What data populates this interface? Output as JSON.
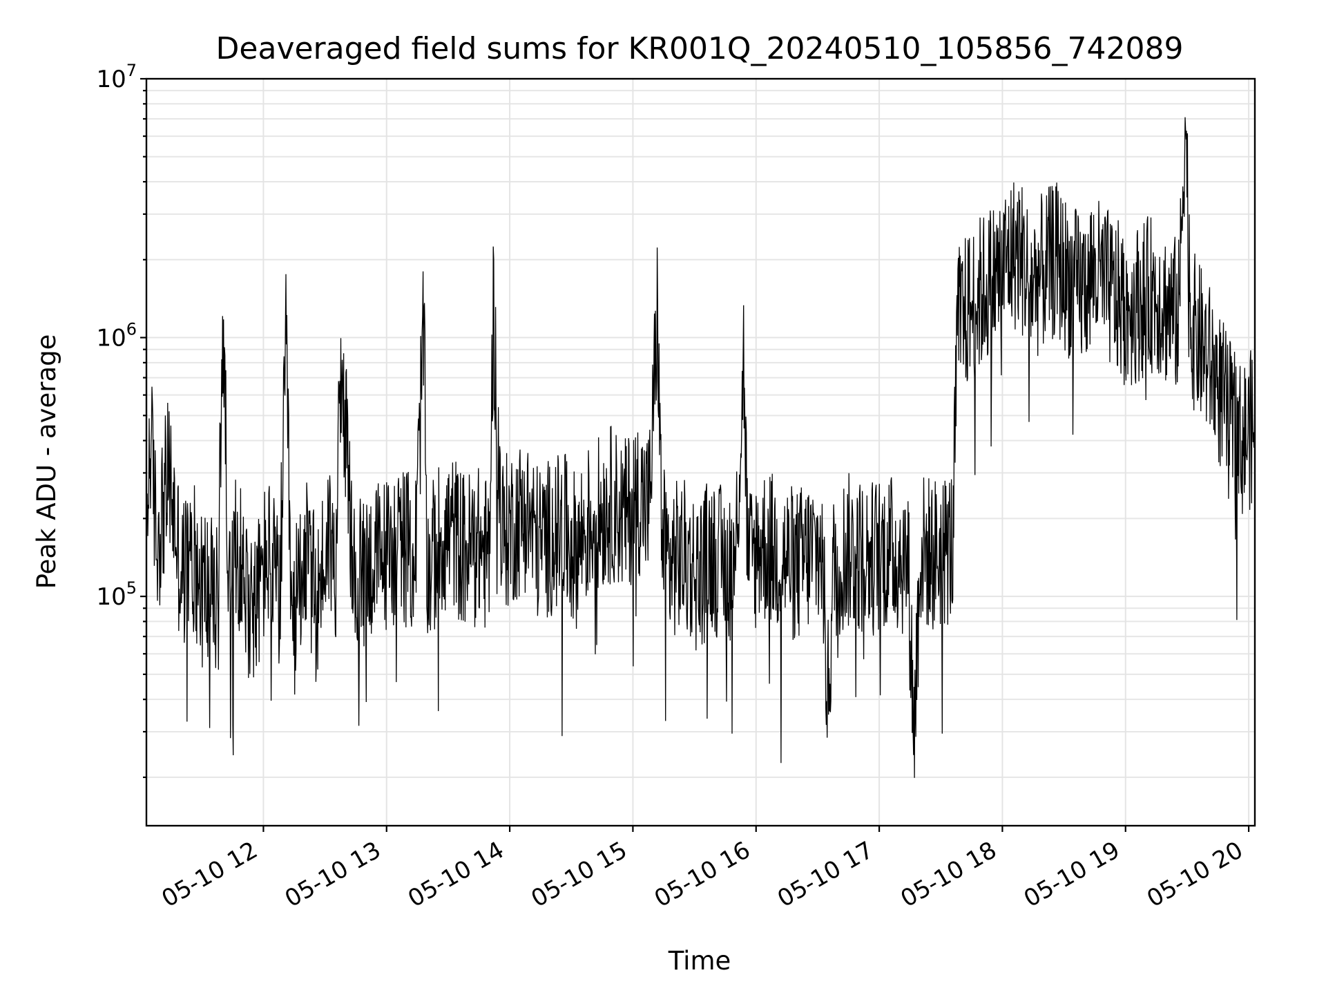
{
  "chart_data": {
    "type": "line",
    "title": "Deaveraged field sums for KR001Q_20240510_105856_742089",
    "xlabel": "Time",
    "ylabel": "Peak ADU - average",
    "yscale": "log",
    "xlim": [
      "2024-05-10 11:03",
      "2024-05-10 20:03"
    ],
    "ylim": [
      13000,
      10000000
    ],
    "grid": true,
    "line_color": "#000000",
    "x_ticks": [
      {
        "value": "2024-05-10 12:00",
        "label": "05-10 12"
      },
      {
        "value": "2024-05-10 13:00",
        "label": "05-10 13"
      },
      {
        "value": "2024-05-10 14:00",
        "label": "05-10 14"
      },
      {
        "value": "2024-05-10 15:00",
        "label": "05-10 15"
      },
      {
        "value": "2024-05-10 16:00",
        "label": "05-10 16"
      },
      {
        "value": "2024-05-10 17:00",
        "label": "05-10 17"
      },
      {
        "value": "2024-05-10 18:00",
        "label": "05-10 18"
      },
      {
        "value": "2024-05-10 19:00",
        "label": "05-10 19"
      },
      {
        "value": "2024-05-10 20:00",
        "label": "05-10 20"
      }
    ],
    "y_ticks": [
      {
        "value": 100000,
        "base": "10",
        "exp": "5"
      },
      {
        "value": 1000000,
        "base": "10",
        "exp": "6"
      },
      {
        "value": 10000000,
        "base": "10",
        "exp": "7"
      }
    ],
    "series": [
      {
        "x": [
          "2024-05-10 11:03",
          "2024-05-10 11:05",
          "2024-05-10 11:08",
          "2024-05-10 11:14",
          "2024-05-10 11:20",
          "2024-05-10 11:26",
          "2024-05-10 11:32",
          "2024-05-10 11:38",
          "2024-05-10 11:40",
          "2024-05-10 11:44",
          "2024-05-10 11:47",
          "2024-05-10 11:50",
          "2024-05-10 11:56",
          "2024-05-10 12:02",
          "2024-05-10 12:08",
          "2024-05-10 12:11",
          "2024-05-10 12:14",
          "2024-05-10 12:17",
          "2024-05-10 12:20",
          "2024-05-10 12:26",
          "2024-05-10 12:32",
          "2024-05-10 12:35",
          "2024-05-10 12:38",
          "2024-05-10 12:44",
          "2024-05-10 12:50",
          "2024-05-10 12:56",
          "2024-05-10 13:02",
          "2024-05-10 13:08",
          "2024-05-10 13:14",
          "2024-05-10 13:18",
          "2024-05-10 13:20",
          "2024-05-10 13:26",
          "2024-05-10 13:32",
          "2024-05-10 13:38",
          "2024-05-10 13:44",
          "2024-05-10 13:50",
          "2024-05-10 13:52",
          "2024-05-10 13:56",
          "2024-05-10 14:02",
          "2024-05-10 14:08",
          "2024-05-10 14:14",
          "2024-05-10 14:20",
          "2024-05-10 14:26",
          "2024-05-10 14:32",
          "2024-05-10 14:38",
          "2024-05-10 14:44",
          "2024-05-10 14:50",
          "2024-05-10 14:56",
          "2024-05-10 15:02",
          "2024-05-10 15:08",
          "2024-05-10 15:12",
          "2024-05-10 15:14",
          "2024-05-10 15:18",
          "2024-05-10 15:20",
          "2024-05-10 15:26",
          "2024-05-10 15:32",
          "2024-05-10 15:38",
          "2024-05-10 15:44",
          "2024-05-10 15:50",
          "2024-05-10 15:54",
          "2024-05-10 15:56",
          "2024-05-10 16:02",
          "2024-05-10 16:08",
          "2024-05-10 16:14",
          "2024-05-10 16:20",
          "2024-05-10 16:26",
          "2024-05-10 16:32",
          "2024-05-10 16:35",
          "2024-05-10 16:38",
          "2024-05-10 16:44",
          "2024-05-10 16:50",
          "2024-05-10 16:56",
          "2024-05-10 17:02",
          "2024-05-10 17:08",
          "2024-05-10 17:14",
          "2024-05-10 17:17",
          "2024-05-10 17:20",
          "2024-05-10 17:26",
          "2024-05-10 17:32",
          "2024-05-10 17:36",
          "2024-05-10 17:38",
          "2024-05-10 17:44",
          "2024-05-10 17:50",
          "2024-05-10 17:56",
          "2024-05-10 18:00",
          "2024-05-10 18:02",
          "2024-05-10 18:08",
          "2024-05-10 18:14",
          "2024-05-10 18:20",
          "2024-05-10 18:26",
          "2024-05-10 18:32",
          "2024-05-10 18:38",
          "2024-05-10 18:44",
          "2024-05-10 18:50",
          "2024-05-10 18:56",
          "2024-05-10 19:02",
          "2024-05-10 19:08",
          "2024-05-10 19:14",
          "2024-05-10 19:20",
          "2024-05-10 19:26",
          "2024-05-10 19:29",
          "2024-05-10 19:32",
          "2024-05-10 19:38",
          "2024-05-10 19:44",
          "2024-05-10 19:50",
          "2024-05-10 19:56",
          "2024-05-10 20:02"
        ],
        "values": [
          180000,
          420000,
          160000,
          300000,
          120000,
          140000,
          110000,
          90000,
          1200000,
          80000,
          170000,
          120000,
          90000,
          150000,
          100000,
          900000,
          60000,
          120000,
          150000,
          95000,
          180000,
          120000,
          850000,
          110000,
          130000,
          140000,
          150000,
          160000,
          140000,
          1100000,
          120000,
          170000,
          180000,
          150000,
          160000,
          140000,
          1300000,
          170000,
          190000,
          210000,
          160000,
          170000,
          180000,
          150000,
          190000,
          210000,
          230000,
          200000,
          250000,
          220000,
          1300000,
          170000,
          130000,
          140000,
          140000,
          120000,
          150000,
          130000,
          140000,
          850000,
          130000,
          160000,
          150000,
          140000,
          130000,
          145000,
          150000,
          40000,
          135000,
          150000,
          145000,
          140000,
          150000,
          145000,
          140000,
          30000,
          150000,
          145000,
          150000,
          160000,
          1100000,
          1300000,
          1500000,
          1700000,
          1800000,
          2000000,
          2200000,
          1600000,
          1800000,
          2000000,
          1700000,
          1500000,
          1800000,
          1600000,
          1400000,
          1300000,
          1400000,
          1500000,
          1300000,
          1200000,
          7500000,
          1100000,
          900000,
          700000,
          500000,
          400000,
          450000
        ]
      }
    ]
  }
}
